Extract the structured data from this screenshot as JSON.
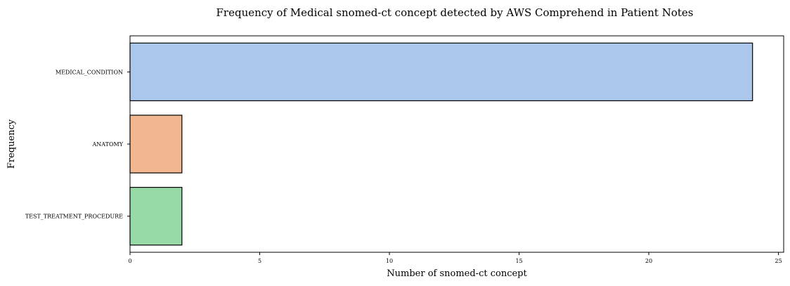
{
  "chart_data": {
    "type": "bar",
    "orientation": "horizontal",
    "title": "Frequency of Medical snomed-ct concept detected by AWS Comprehend in Patient Notes",
    "xlabel": "Number of snomed-ct concept",
    "ylabel": "Frequency",
    "categories": [
      "MEDICAL_CONDITION",
      "ANATOMY",
      "TEST_TREATMENT_PROCEDURE"
    ],
    "values": [
      24,
      2,
      2
    ],
    "colors": [
      "#abc8ec",
      "#f1b791",
      "#98d9a8"
    ],
    "edge_color": "#000000",
    "xlim": [
      0,
      25.2
    ],
    "xticks": [
      0,
      5,
      10,
      15,
      20,
      25
    ],
    "grid": false,
    "legend": false
  }
}
